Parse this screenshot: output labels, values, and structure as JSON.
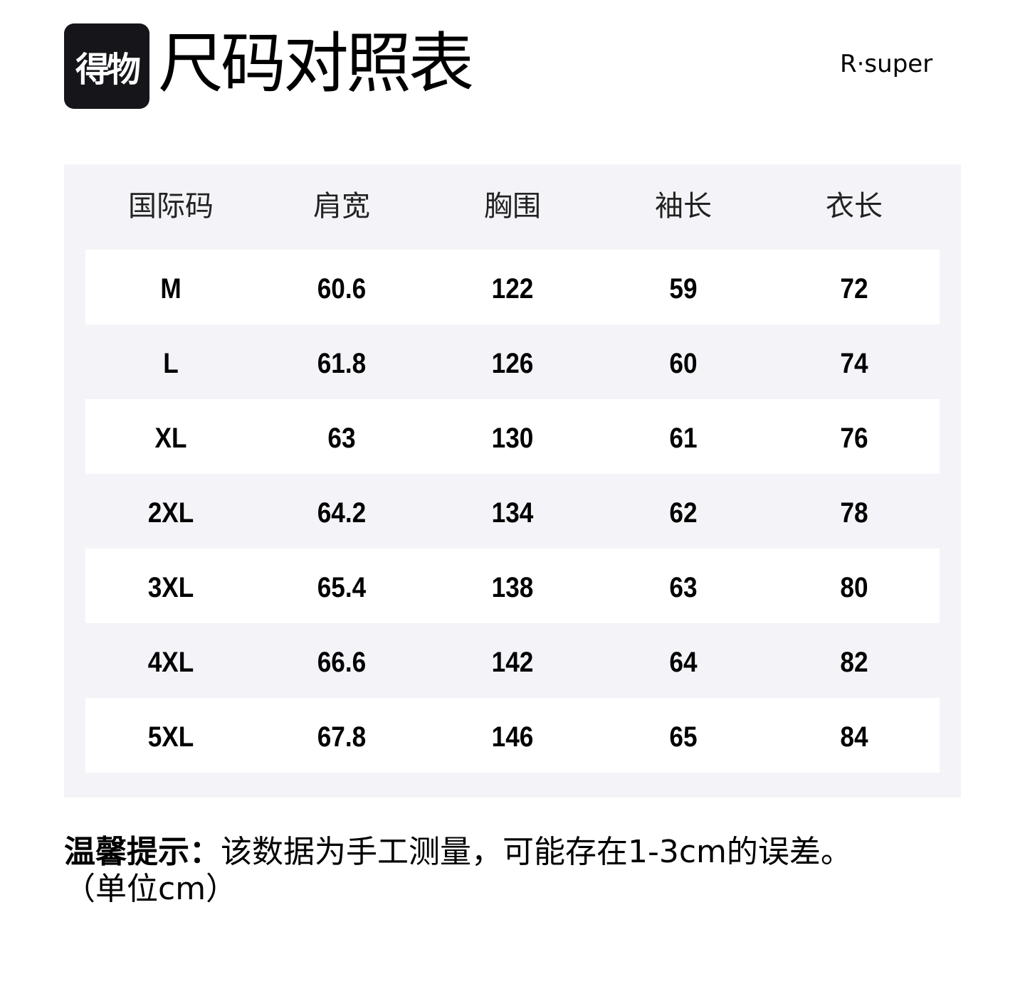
{
  "header": {
    "logo_text": "得物",
    "title": "尺码对照表",
    "brand": "R·super"
  },
  "table": {
    "columns": [
      "国际码",
      "肩宽",
      "胸围",
      "袖长",
      "衣长"
    ],
    "rows": [
      [
        "M",
        "60.6",
        "122",
        "59",
        "72"
      ],
      [
        "L",
        "61.8",
        "126",
        "60",
        "74"
      ],
      [
        "XL",
        "63",
        "130",
        "61",
        "76"
      ],
      [
        "2XL",
        "64.2",
        "134",
        "62",
        "78"
      ],
      [
        "3XL",
        "65.4",
        "138",
        "63",
        "80"
      ],
      [
        "4XL",
        "66.6",
        "142",
        "64",
        "82"
      ],
      [
        "5XL",
        "67.8",
        "146",
        "65",
        "84"
      ]
    ]
  },
  "note": {
    "label": "温馨提示：",
    "text": "该数据为手工测量，可能存在1-3cm的误差。",
    "unit": "（单位cm）"
  }
}
